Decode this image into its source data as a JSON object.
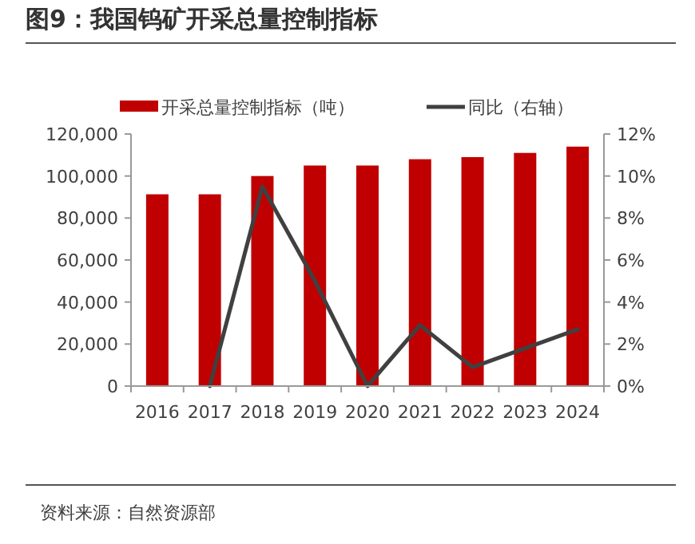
{
  "chart_data": {
    "type": "bar",
    "title": "图9：我国钨矿开采总量控制指标",
    "categories": [
      "2016",
      "2017",
      "2018",
      "2019",
      "2020",
      "2021",
      "2022",
      "2023",
      "2024"
    ],
    "series": [
      {
        "name": "开采总量控制指标（吨）",
        "color": "#c00000",
        "values": [
          91300,
          91300,
          100000,
          105000,
          105000,
          108000,
          109000,
          111000,
          114000
        ]
      },
      {
        "name": "同比（右轴）",
        "type": "line",
        "axis": "y2",
        "color": "#404040",
        "values": [
          null,
          0,
          9.5,
          5,
          0,
          2.9,
          0.9,
          1.8,
          2.7
        ]
      }
    ],
    "ylim": [
      0,
      120000
    ],
    "yticks": [
      {
        "value": 0,
        "label": "0"
      },
      {
        "value": 20000,
        "label": "20,000"
      },
      {
        "value": 40000,
        "label": "40,000"
      },
      {
        "value": 60000,
        "label": "60,000"
      },
      {
        "value": 80000,
        "label": "80,000"
      },
      {
        "value": 100000,
        "label": "100,000"
      },
      {
        "value": 120000,
        "label": "120,000"
      }
    ],
    "y2lim": [
      0,
      12
    ],
    "y2ticks": [
      {
        "value": 0,
        "label": "0%"
      },
      {
        "value": 2,
        "label": "2%"
      },
      {
        "value": 4,
        "label": "4%"
      },
      {
        "value": 6,
        "label": "6%"
      },
      {
        "value": 8,
        "label": "8%"
      },
      {
        "value": 10,
        "label": "10%"
      },
      {
        "value": 12,
        "label": "12%"
      }
    ],
    "legend": "top",
    "annotations": [
      "资料来源：自然资源部"
    ]
  }
}
